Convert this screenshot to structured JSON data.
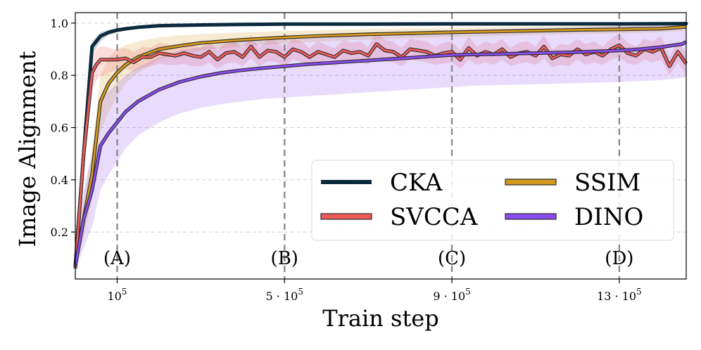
{
  "chart_data": {
    "type": "line",
    "xlabel": "Train step",
    "ylabel": "Image Alignment",
    "xlim": [
      0,
      1460000
    ],
    "ylim": [
      0.02,
      1.04
    ],
    "grid": true,
    "legend_position": "lower-right",
    "legend_columns": 2,
    "x_ticks": [
      {
        "value": 100000,
        "label": "10^5",
        "base": "10",
        "exp": "5",
        "mult": ""
      },
      {
        "value": 500000,
        "label": "5·10^5",
        "base": "10",
        "exp": "5",
        "mult": "5 · "
      },
      {
        "value": 900000,
        "label": "9·10^5",
        "base": "10",
        "exp": "5",
        "mult": "9 · "
      },
      {
        "value": 1300000,
        "label": "13·10^5",
        "base": "10",
        "exp": "5",
        "mult": "13 · "
      }
    ],
    "y_ticks": [
      {
        "value": 0.2,
        "label": "0.2"
      },
      {
        "value": 0.4,
        "label": "0.4"
      },
      {
        "value": 0.6,
        "label": "0.6"
      },
      {
        "value": 0.8,
        "label": "0.8"
      },
      {
        "value": 1.0,
        "label": "1.0"
      }
    ],
    "markers": [
      {
        "x": 100000,
        "label": "(A)"
      },
      {
        "x": 500000,
        "label": "(B)"
      },
      {
        "x": 900000,
        "label": "(C)"
      },
      {
        "x": 1300000,
        "label": "(D)"
      }
    ],
    "series": [
      {
        "name": "CKA",
        "color": "#0b2a3d",
        "style": "thick",
        "x": [
          0,
          20000,
          40000,
          60000,
          80000,
          100000,
          120000,
          150000,
          200000,
          300000,
          400000,
          500000,
          700000,
          900000,
          1100000,
          1300000,
          1460000
        ],
        "y": [
          0.07,
          0.5,
          0.91,
          0.95,
          0.965,
          0.973,
          0.978,
          0.984,
          0.99,
          0.993,
          0.995,
          0.996,
          0.996,
          0.997,
          0.997,
          0.997,
          0.998
        ],
        "band_low": [
          0.05,
          0.4,
          0.88,
          0.93,
          0.955,
          0.965,
          0.972,
          0.979,
          0.986,
          0.99,
          0.992,
          0.993,
          0.994,
          0.995,
          0.995,
          0.995,
          0.996
        ],
        "band_high": [
          0.09,
          0.6,
          0.93,
          0.965,
          0.975,
          0.981,
          0.985,
          0.989,
          0.994,
          0.996,
          0.997,
          0.998,
          0.998,
          0.998,
          0.998,
          0.998,
          0.999
        ]
      },
      {
        "name": "SSIM",
        "color": "#d49a1e",
        "style": "outlined",
        "x": [
          0,
          20000,
          40000,
          60000,
          80000,
          100000,
          120000,
          150000,
          200000,
          250000,
          300000,
          400000,
          500000,
          600000,
          700000,
          800000,
          900000,
          1000000,
          1100000,
          1200000,
          1300000,
          1400000,
          1460000
        ],
        "y": [
          0.08,
          0.25,
          0.42,
          0.7,
          0.77,
          0.81,
          0.84,
          0.87,
          0.9,
          0.913,
          0.924,
          0.936,
          0.945,
          0.952,
          0.957,
          0.961,
          0.965,
          0.968,
          0.971,
          0.974,
          0.976,
          0.979,
          0.986
        ],
        "band_low": [
          0.06,
          0.18,
          0.33,
          0.58,
          0.66,
          0.72,
          0.77,
          0.81,
          0.86,
          0.88,
          0.895,
          0.91,
          0.922,
          0.93,
          0.937,
          0.942,
          0.947,
          0.951,
          0.955,
          0.958,
          0.961,
          0.965,
          0.972
        ],
        "band_high": [
          0.1,
          0.32,
          0.52,
          0.8,
          0.87,
          0.9,
          0.915,
          0.93,
          0.945,
          0.953,
          0.958,
          0.965,
          0.97,
          0.974,
          0.977,
          0.98,
          0.982,
          0.984,
          0.986,
          0.988,
          0.99,
          0.991,
          0.995
        ]
      },
      {
        "name": "SVCCA",
        "color": "#f05b5b",
        "style": "outlined",
        "x": [
          0,
          20000,
          40000,
          50000,
          60000,
          70000,
          80000,
          100000,
          120000,
          140000,
          160000,
          180000,
          200000,
          220000,
          240000,
          260000,
          280000,
          300000,
          320000,
          340000,
          360000,
          380000,
          400000,
          420000,
          440000,
          460000,
          480000,
          500000,
          520000,
          540000,
          560000,
          580000,
          600000,
          620000,
          640000,
          660000,
          680000,
          700000,
          720000,
          740000,
          760000,
          780000,
          800000,
          820000,
          840000,
          860000,
          880000,
          900000,
          920000,
          940000,
          960000,
          980000,
          1000000,
          1020000,
          1040000,
          1060000,
          1080000,
          1100000,
          1120000,
          1140000,
          1160000,
          1180000,
          1200000,
          1220000,
          1240000,
          1260000,
          1280000,
          1300000,
          1320000,
          1340000,
          1360000,
          1380000,
          1400000,
          1420000,
          1440000,
          1460000
        ],
        "y": [
          0.06,
          0.5,
          0.81,
          0.84,
          0.86,
          0.86,
          0.86,
          0.86,
          0.865,
          0.85,
          0.87,
          0.87,
          0.885,
          0.88,
          0.875,
          0.885,
          0.875,
          0.87,
          0.89,
          0.86,
          0.885,
          0.89,
          0.87,
          0.91,
          0.87,
          0.895,
          0.89,
          0.87,
          0.9,
          0.89,
          0.87,
          0.89,
          0.88,
          0.87,
          0.895,
          0.885,
          0.89,
          0.875,
          0.92,
          0.895,
          0.89,
          0.87,
          0.9,
          0.895,
          0.89,
          0.875,
          0.885,
          0.89,
          0.86,
          0.905,
          0.875,
          0.89,
          0.88,
          0.9,
          0.87,
          0.885,
          0.89,
          0.875,
          0.91,
          0.865,
          0.88,
          0.875,
          0.9,
          0.88,
          0.89,
          0.875,
          0.9,
          0.915,
          0.885,
          0.875,
          0.9,
          0.89,
          0.905,
          0.835,
          0.89,
          0.845
        ],
        "band_low": [
          0.04,
          0.42,
          0.74,
          0.78,
          0.8,
          0.8,
          0.81,
          0.82,
          0.825,
          0.815,
          0.83,
          0.835,
          0.845,
          0.84,
          0.84,
          0.845,
          0.835,
          0.835,
          0.85,
          0.825,
          0.845,
          0.85,
          0.835,
          0.865,
          0.835,
          0.855,
          0.85,
          0.835,
          0.86,
          0.85,
          0.835,
          0.85,
          0.845,
          0.835,
          0.855,
          0.845,
          0.85,
          0.84,
          0.87,
          0.855,
          0.85,
          0.835,
          0.86,
          0.855,
          0.85,
          0.84,
          0.845,
          0.85,
          0.825,
          0.86,
          0.84,
          0.85,
          0.84,
          0.86,
          0.835,
          0.845,
          0.85,
          0.84,
          0.865,
          0.83,
          0.84,
          0.835,
          0.86,
          0.84,
          0.85,
          0.84,
          0.86,
          0.87,
          0.845,
          0.84,
          0.86,
          0.85,
          0.86,
          0.8,
          0.85,
          0.8
        ],
        "band_high": [
          0.08,
          0.58,
          0.88,
          0.9,
          0.91,
          0.91,
          0.905,
          0.9,
          0.905,
          0.89,
          0.91,
          0.905,
          0.925,
          0.92,
          0.91,
          0.925,
          0.915,
          0.905,
          0.93,
          0.895,
          0.925,
          0.93,
          0.905,
          0.955,
          0.905,
          0.935,
          0.93,
          0.905,
          0.94,
          0.93,
          0.905,
          0.93,
          0.915,
          0.905,
          0.935,
          0.925,
          0.93,
          0.91,
          0.97,
          0.935,
          0.93,
          0.905,
          0.94,
          0.935,
          0.93,
          0.91,
          0.925,
          0.93,
          0.895,
          0.95,
          0.91,
          0.93,
          0.92,
          0.94,
          0.905,
          0.925,
          0.93,
          0.91,
          0.955,
          0.9,
          0.92,
          0.915,
          0.94,
          0.92,
          0.93,
          0.91,
          0.94,
          0.96,
          0.925,
          0.91,
          0.94,
          0.93,
          0.95,
          0.87,
          0.93,
          0.89
        ]
      },
      {
        "name": "DINO",
        "color": "#8a4cf0",
        "style": "outlined",
        "x": [
          0,
          20000,
          40000,
          60000,
          80000,
          100000,
          120000,
          150000,
          200000,
          250000,
          300000,
          350000,
          400000,
          450000,
          500000,
          550000,
          600000,
          650000,
          700000,
          750000,
          800000,
          850000,
          900000,
          950000,
          1000000,
          1050000,
          1100000,
          1150000,
          1200000,
          1250000,
          1300000,
          1350000,
          1400000,
          1450000,
          1460000
        ],
        "y": [
          0.07,
          0.25,
          0.36,
          0.53,
          0.58,
          0.62,
          0.66,
          0.7,
          0.745,
          0.775,
          0.795,
          0.81,
          0.82,
          0.828,
          0.835,
          0.842,
          0.847,
          0.852,
          0.857,
          0.862,
          0.867,
          0.873,
          0.878,
          0.88,
          0.881,
          0.883,
          0.885,
          0.887,
          0.889,
          0.892,
          0.895,
          0.9,
          0.908,
          0.92,
          0.928
        ],
        "band_low": [
          0.05,
          0.14,
          0.22,
          0.36,
          0.42,
          0.47,
          0.52,
          0.57,
          0.62,
          0.655,
          0.675,
          0.69,
          0.7,
          0.71,
          0.715,
          0.72,
          0.725,
          0.73,
          0.735,
          0.74,
          0.745,
          0.75,
          0.755,
          0.76,
          0.762,
          0.764,
          0.766,
          0.768,
          0.77,
          0.772,
          0.775,
          0.778,
          0.782,
          0.79,
          0.795
        ],
        "band_high": [
          0.09,
          0.36,
          0.5,
          0.7,
          0.74,
          0.77,
          0.8,
          0.83,
          0.87,
          0.895,
          0.91,
          0.92,
          0.93,
          0.935,
          0.94,
          0.945,
          0.95,
          0.955,
          0.96,
          0.963,
          0.967,
          0.97,
          0.973,
          0.975,
          0.976,
          0.978,
          0.98,
          0.982,
          0.984,
          0.986,
          0.988,
          0.99,
          0.993,
          0.996,
          0.998
        ]
      }
    ]
  }
}
